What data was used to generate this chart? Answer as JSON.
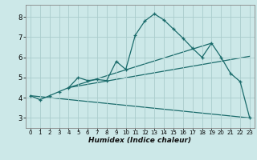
{
  "xlabel": "Humidex (Indice chaleur)",
  "xlim": [
    -0.5,
    23.5
  ],
  "ylim": [
    2.5,
    8.6
  ],
  "xticks": [
    0,
    1,
    2,
    3,
    4,
    5,
    6,
    7,
    8,
    9,
    10,
    11,
    12,
    13,
    14,
    15,
    16,
    17,
    18,
    19,
    20,
    21,
    22,
    23
  ],
  "yticks": [
    3,
    4,
    5,
    6,
    7,
    8
  ],
  "bg_color": "#cce8e8",
  "grid_color": "#aacccc",
  "line_color": "#1a6b6b",
  "series_main": {
    "x": [
      0,
      1,
      2,
      3,
      4,
      5,
      6,
      7,
      8,
      9,
      10,
      11,
      12,
      13,
      14,
      15,
      16,
      17,
      18,
      19,
      20,
      21,
      22,
      23
    ],
    "y": [
      4.1,
      3.9,
      4.1,
      4.3,
      4.5,
      5.0,
      4.85,
      4.9,
      4.85,
      5.8,
      5.4,
      7.1,
      7.8,
      8.15,
      7.85,
      7.4,
      6.95,
      6.45,
      6.0,
      6.7,
      6.0,
      5.2,
      4.8,
      3.0
    ]
  },
  "series_lines": [
    {
      "x": [
        0,
        23
      ],
      "y": [
        4.1,
        3.0
      ]
    },
    {
      "x": [
        4,
        23
      ],
      "y": [
        4.5,
        6.05
      ]
    },
    {
      "x": [
        4,
        19
      ],
      "y": [
        4.5,
        6.7
      ]
    }
  ],
  "marker": "+",
  "markersize": 3.5,
  "linewidth": 0.9,
  "xlabel_fontsize": 6.5,
  "tick_fontsize_x": 5.0,
  "tick_fontsize_y": 6.0
}
